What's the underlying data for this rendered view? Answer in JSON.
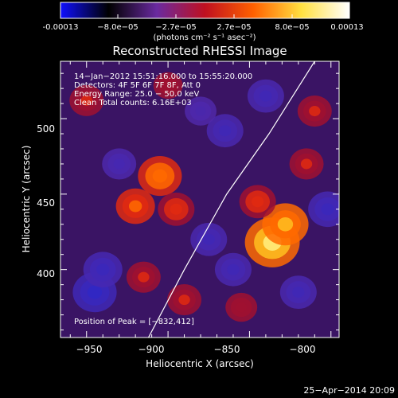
{
  "colorbar": {
    "tick_labels": [
      "-0.00013",
      "−8.0e−05",
      "−2.7e−05",
      "2.7e−05",
      "8.0e−05",
      "0.00013"
    ],
    "units_label": "(photons cm⁻² s⁻¹ asec⁻²)",
    "colors": [
      "#1010ff",
      "#000000",
      "#6a2aa0",
      "#c01020",
      "#ff6000",
      "#ffe040",
      "#ffffff"
    ]
  },
  "info": {
    "time": "14−Jan−2012 15:51:16.000 to 15:55:20.000",
    "detectors": "Detectors: 4F 5F 6F 7F 8F, Att 0",
    "energy": "Energy Range: 25.0 − 50.0 keV",
    "clean": "Clean     Total counts: 6.16E+03",
    "peak": "Position of Peak = [−832,412]"
  },
  "footer": {
    "timestamp": "25−Apr−2014 20:09"
  },
  "chart_data": {
    "type": "heatmap",
    "title": "Reconstructed RHESSI Image",
    "xlabel": "Heliocentric X (arcsec)",
    "ylabel": "Heliocentric Y (arcsec)",
    "xlim": [
      -966,
      -795
    ],
    "ylim": [
      355,
      538
    ],
    "xticks": [
      -950,
      -900,
      -850,
      -800
    ],
    "yticks": [
      400,
      450,
      500
    ],
    "xtick_labels": [
      "−950",
      "−900",
      "−850",
      "−800"
    ],
    "ytick_labels": [
      "400",
      "450",
      "500"
    ],
    "value_range": [
      -0.00013,
      0.00013
    ],
    "limb_line": [
      [
        -912,
        355
      ],
      [
        -890,
        400
      ],
      [
        -864,
        450
      ],
      [
        -838,
        490
      ],
      [
        -810,
        538
      ]
    ],
    "peak": [
      -832,
      412
    ],
    "blobs": [
      {
        "x": -836,
        "y": 418,
        "v": 0.000125
      },
      {
        "x": -828,
        "y": 430,
        "v": 9e-05
      },
      {
        "x": -905,
        "y": 462,
        "v": 8e-05
      },
      {
        "x": -920,
        "y": 442,
        "v": 6e-05
      },
      {
        "x": -895,
        "y": 440,
        "v": 5e-05
      },
      {
        "x": -845,
        "y": 445,
        "v": 5e-05
      },
      {
        "x": -815,
        "y": 470,
        "v": 4e-05
      },
      {
        "x": -810,
        "y": 505,
        "v": 4e-05
      },
      {
        "x": -950,
        "y": 512,
        "v": 4e-05
      },
      {
        "x": -890,
        "y": 380,
        "v": 4e-05
      },
      {
        "x": -915,
        "y": 395,
        "v": 4e-05
      },
      {
        "x": -855,
        "y": 375,
        "v": 3e-05
      },
      {
        "x": -900,
        "y": 522,
        "v": 2e-05
      },
      {
        "x": -945,
        "y": 385,
        "v": -8e-05
      },
      {
        "x": -940,
        "y": 400,
        "v": -6e-05
      },
      {
        "x": -875,
        "y": 420,
        "v": -5e-05
      },
      {
        "x": -860,
        "y": 400,
        "v": -5e-05
      },
      {
        "x": -820,
        "y": 385,
        "v": -5e-05
      },
      {
        "x": -865,
        "y": 492,
        "v": -5e-05
      },
      {
        "x": -930,
        "y": 470,
        "v": -4e-05
      },
      {
        "x": -840,
        "y": 515,
        "v": -5e-05
      },
      {
        "x": -802,
        "y": 440,
        "v": -6e-05
      },
      {
        "x": -880,
        "y": 505,
        "v": -3e-05
      }
    ]
  }
}
